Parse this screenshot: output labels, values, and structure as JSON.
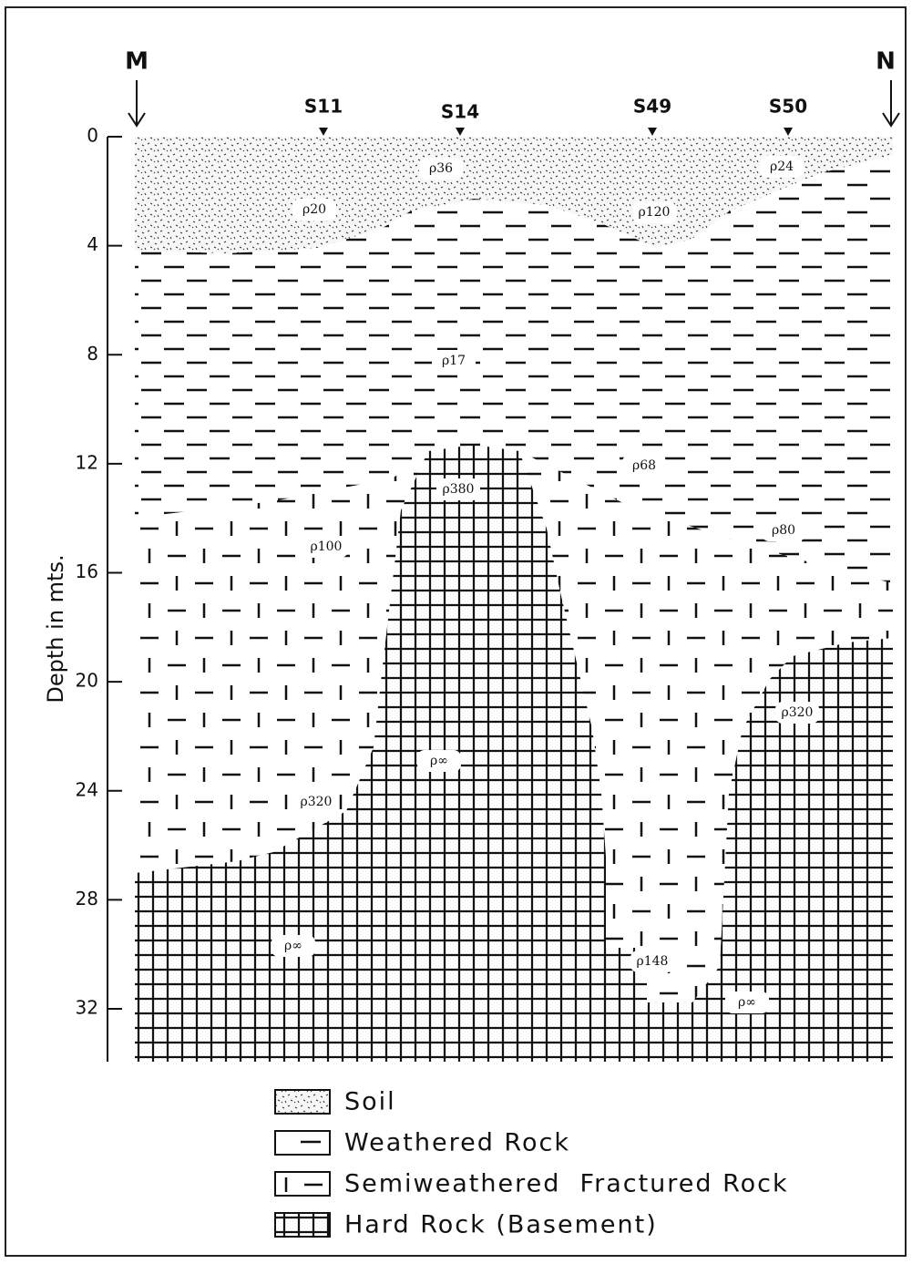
{
  "profile": {
    "start": "M",
    "end": "N"
  },
  "stations": [
    "S11",
    "S14",
    "S49",
    "S50"
  ],
  "depth_axis": {
    "label": "Depth in mts.",
    "ticks": [
      0,
      4,
      8,
      12,
      16,
      20,
      24,
      28,
      32
    ]
  },
  "resistivity_labels": [
    "ρ36",
    "ρ24",
    "ρ20",
    "ρ120",
    "ρ17",
    "ρ68",
    "ρ380",
    "ρ80",
    "ρ100",
    "ρ320",
    "ρ∞",
    "ρ320",
    "ρ∞",
    "ρ148",
    "ρ∞"
  ],
  "legend": [
    "Soil",
    "Weathered Rock",
    "Semiweathered  Fractured Rock",
    "Hard Rock (Basement)"
  ]
}
